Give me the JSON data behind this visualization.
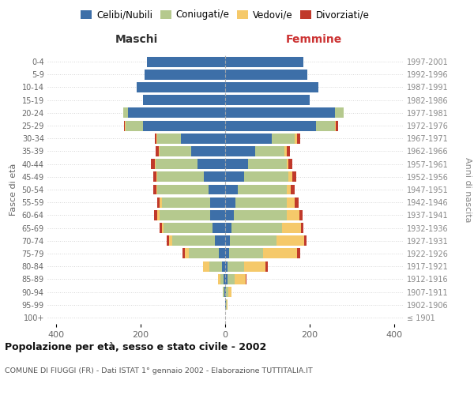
{
  "age_groups": [
    "100+",
    "95-99",
    "90-94",
    "85-89",
    "80-84",
    "75-79",
    "70-74",
    "65-69",
    "60-64",
    "55-59",
    "50-54",
    "45-49",
    "40-44",
    "35-39",
    "30-34",
    "25-29",
    "20-24",
    "15-19",
    "10-14",
    "5-9",
    "0-4"
  ],
  "birth_years": [
    "≤ 1901",
    "1902-1906",
    "1907-1911",
    "1912-1916",
    "1917-1921",
    "1922-1926",
    "1927-1931",
    "1932-1936",
    "1937-1941",
    "1942-1946",
    "1947-1951",
    "1952-1956",
    "1957-1961",
    "1962-1966",
    "1967-1971",
    "1972-1976",
    "1977-1981",
    "1982-1986",
    "1987-1991",
    "1992-1996",
    "1997-2001"
  ],
  "maschi": {
    "celibi": [
      0,
      0,
      2,
      4,
      8,
      15,
      25,
      30,
      35,
      35,
      40,
      50,
      65,
      80,
      105,
      195,
      230,
      195,
      210,
      190,
      185
    ],
    "coniugati": [
      0,
      0,
      3,
      8,
      30,
      70,
      100,
      115,
      120,
      115,
      120,
      110,
      100,
      75,
      55,
      40,
      10,
      0,
      0,
      0,
      0
    ],
    "vedovi": [
      0,
      0,
      0,
      5,
      15,
      10,
      8,
      5,
      5,
      5,
      2,
      2,
      2,
      2,
      2,
      2,
      0,
      0,
      0,
      0,
      0
    ],
    "divorziati": [
      0,
      0,
      0,
      0,
      0,
      5,
      5,
      5,
      8,
      5,
      8,
      8,
      8,
      8,
      5,
      2,
      0,
      0,
      0,
      0,
      0
    ]
  },
  "femmine": {
    "nubili": [
      0,
      1,
      2,
      5,
      5,
      10,
      12,
      15,
      20,
      25,
      30,
      45,
      55,
      70,
      110,
      215,
      260,
      200,
      220,
      195,
      185
    ],
    "coniugate": [
      0,
      2,
      5,
      18,
      40,
      80,
      110,
      120,
      125,
      120,
      115,
      105,
      90,
      70,
      55,
      45,
      20,
      0,
      0,
      0,
      0
    ],
    "vedove": [
      0,
      3,
      8,
      25,
      50,
      80,
      65,
      45,
      30,
      20,
      10,
      8,
      5,
      5,
      5,
      2,
      0,
      0,
      0,
      0,
      0
    ],
    "divorziate": [
      0,
      0,
      0,
      2,
      5,
      8,
      5,
      5,
      8,
      8,
      10,
      10,
      8,
      8,
      8,
      5,
      0,
      0,
      0,
      0,
      0
    ]
  },
  "colors": {
    "celibi_nubili": "#3d6fa8",
    "coniugati": "#b5c98e",
    "vedovi": "#f5c96a",
    "divorziati": "#c0392b"
  },
  "xlim": 420,
  "title": "Popolazione per età, sesso e stato civile - 2002",
  "subtitle": "COMUNE DI FIUGGI (FR) - Dati ISTAT 1° gennaio 2002 - Elaborazione TUTTITALIA.IT",
  "xlabel_left": "Maschi",
  "xlabel_right": "Femmine",
  "ylabel_left": "Fasce di età",
  "ylabel_right": "Anni di nascita",
  "legend_labels": [
    "Celibi/Nubili",
    "Coniugati/e",
    "Vedovi/e",
    "Divorziati/e"
  ],
  "background_color": "#ffffff",
  "grid_color": "#cccccc",
  "tick_color": "#666666",
  "birth_year_color": "#888888",
  "maschi_header_color": "#333333",
  "femmine_header_color": "#cc3333"
}
